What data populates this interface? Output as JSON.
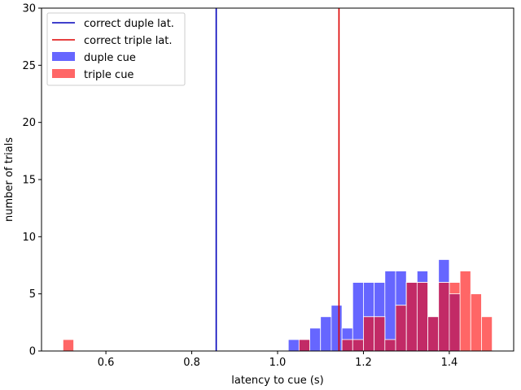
{
  "chart_data": {
    "type": "bar",
    "subtype": "overlaid-histogram",
    "xlabel": "latency to cue (s)",
    "ylabel": "number of trials",
    "xlim": [
      0.45,
      1.55
    ],
    "ylim": [
      0,
      30
    ],
    "xticks": [
      0.6,
      0.8,
      1.0,
      1.2,
      1.4
    ],
    "xtick_labels": [
      "0.6",
      "0.8",
      "1.0",
      "1.2",
      "1.4"
    ],
    "yticks": [
      0,
      5,
      10,
      15,
      20,
      25,
      30
    ],
    "ytick_labels": [
      "0",
      "5",
      "10",
      "15",
      "20",
      "25",
      "30"
    ],
    "grid": false,
    "legend_position": "top-left",
    "bin_width": 0.025,
    "vlines": [
      {
        "name": "correct duple lat.",
        "x": 0.857,
        "color": "#0000bb"
      },
      {
        "name": "correct triple lat.",
        "x": 1.143,
        "color": "#dd0000"
      }
    ],
    "series": [
      {
        "name": "duple cue",
        "color": "#6666ff",
        "bin_starts": [
          1.025,
          1.05,
          1.075,
          1.1,
          1.125,
          1.15,
          1.175,
          1.2,
          1.225,
          1.25,
          1.275,
          1.3,
          1.325,
          1.35,
          1.375,
          1.4,
          1.425,
          1.45,
          1.475
        ],
        "values": [
          1,
          1,
          2,
          3,
          4,
          2,
          6,
          6,
          6,
          7,
          7,
          6,
          7,
          3,
          8,
          5,
          0,
          0,
          0
        ]
      },
      {
        "name": "triple cue",
        "color": "#ff6666",
        "bin_starts": [
          0.5,
          1.05,
          1.15,
          1.175,
          1.2,
          1.225,
          1.25,
          1.275,
          1.3,
          1.325,
          1.35,
          1.375,
          1.4,
          1.425,
          1.45,
          1.475
        ],
        "values": [
          1,
          1,
          1,
          1,
          3,
          3,
          1,
          4,
          6,
          6,
          3,
          6,
          6,
          7,
          5,
          3
        ]
      }
    ]
  }
}
